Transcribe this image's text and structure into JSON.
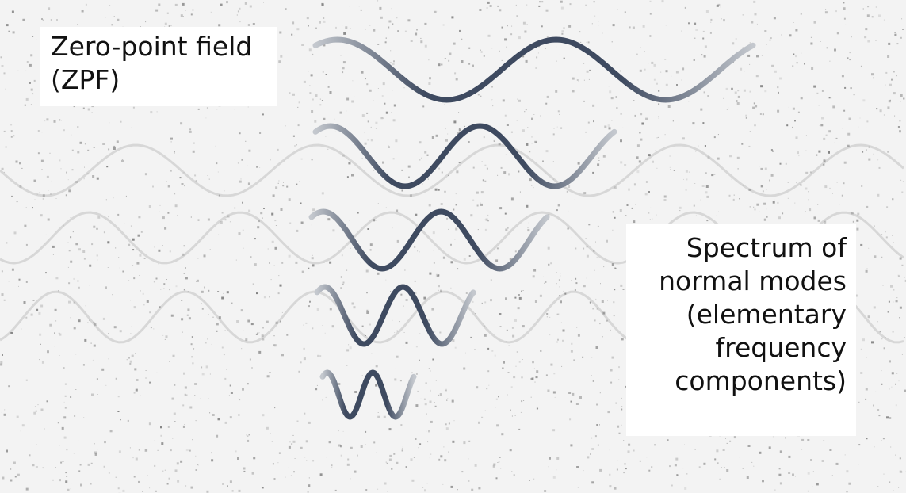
{
  "labels": {
    "zpf": [
      "Zero-point field",
      "(ZPF)"
    ],
    "spectrum": [
      "Spectrum of",
      "normal modes",
      "(elementary",
      "frequency",
      "components)"
    ]
  },
  "colors": {
    "wave_dark": "#3e4a60",
    "wave_light": "#c4c8ce",
    "background_noise": "#9a9a9a",
    "label_background": "#ffffff"
  },
  "diagram": {
    "type": "stacked sinusoidal modes over noisy background",
    "modes": [
      {
        "id": "mode-1",
        "cycles": 2.0
      },
      {
        "id": "mode-2",
        "cycles": 2.0
      },
      {
        "id": "mode-3",
        "cycles": 2.0
      },
      {
        "id": "mode-4",
        "cycles": 2.0
      },
      {
        "id": "mode-5",
        "cycles": 2.0
      }
    ]
  }
}
